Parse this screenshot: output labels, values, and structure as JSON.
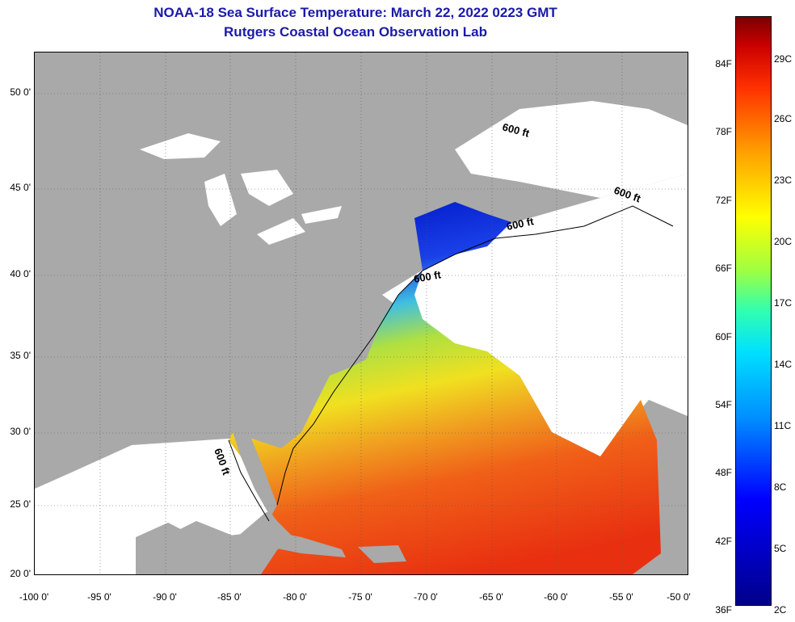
{
  "header": {
    "title": "NOAA-18 Sea Surface Temperature:  March 22, 2022 0223 GMT",
    "subtitle": "Rutgers Coastal Ocean Observation Lab"
  },
  "map": {
    "lon_range": [
      -100,
      -50
    ],
    "lat_range": [
      20,
      52
    ],
    "lat_ticks": [
      "50 0'",
      "45 0'",
      "40 0'",
      "35 0'",
      "30 0'",
      "25 0'",
      "20 0'"
    ],
    "lon_ticks": [
      "-100 0'",
      "-95 0'",
      "-90 0'",
      "-85 0'",
      "-80 0'",
      "-75 0'",
      "-70 0'",
      "-65 0'",
      "-60 0'",
      "-55 0'",
      "-50 0'"
    ],
    "contour_labels": [
      "600 ft",
      "600 ft",
      "600 ft",
      "600 ft",
      "600 ft"
    ],
    "colors": {
      "land": "#a9a9a9",
      "ocean_nodata": "#ffffff"
    }
  },
  "colorbar": {
    "fahrenheit": [
      "84F",
      "78F",
      "72F",
      "66F",
      "60F",
      "54F",
      "48F",
      "42F",
      "36F"
    ],
    "celsius": [
      "29C",
      "26C",
      "23C",
      "20C",
      "17C",
      "14C",
      "11C",
      "8C",
      "5C",
      "2C"
    ]
  }
}
